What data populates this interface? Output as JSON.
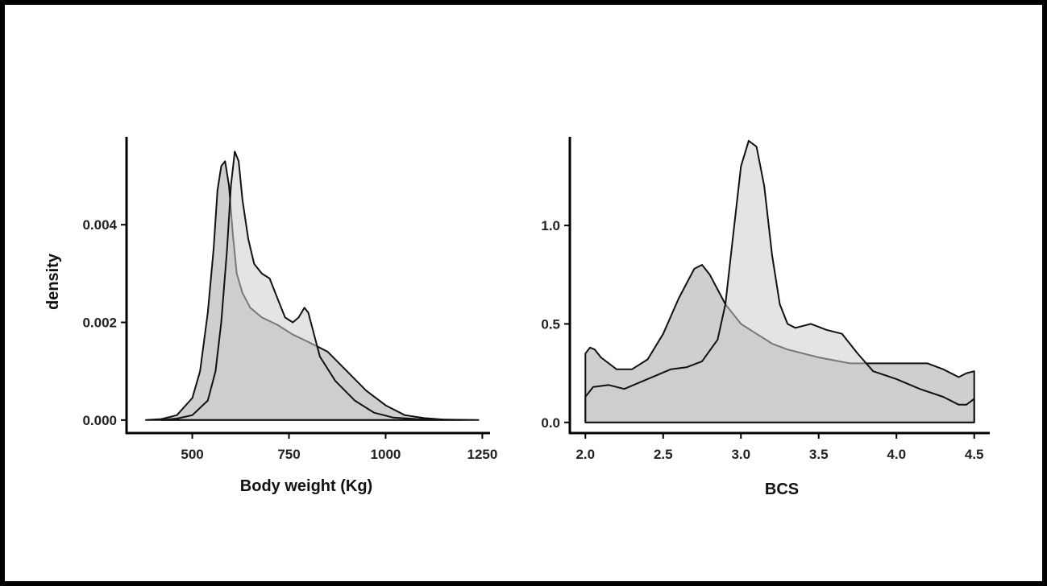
{
  "colors": {
    "frame": "#000000",
    "axis": "#000000",
    "fill_dark": "#a8a8a8",
    "fill_light": "#cdcdcd",
    "line": "#111111"
  },
  "chart_data": [
    {
      "type": "area",
      "title": "",
      "xlabel": "Body weight (Kg)",
      "ylabel": "density",
      "xlim": [
        330,
        1270
      ],
      "ylim": [
        -0.00025,
        0.0058
      ],
      "xticks": [
        500,
        750,
        1000,
        1250
      ],
      "xtick_labels": [
        "500",
        "750",
        "1000",
        "1250"
      ],
      "yticks": [
        0.0,
        0.002,
        0.004
      ],
      "ytick_labels": [
        "0.000",
        "0.002",
        "0.004"
      ],
      "grid": false,
      "legend": "none",
      "series": [
        {
          "x": [
            380,
            420,
            460,
            500,
            520,
            540,
            555,
            565,
            575,
            585,
            595,
            605,
            615,
            630,
            650,
            680,
            720,
            760,
            800,
            850,
            900,
            950,
            1000,
            1050,
            1100,
            1150,
            1200
          ],
          "y": [
            0.0,
            2e-05,
            0.0001,
            0.00045,
            0.001,
            0.0022,
            0.0035,
            0.0047,
            0.0052,
            0.0053,
            0.0048,
            0.0038,
            0.003,
            0.0026,
            0.0023,
            0.0021,
            0.00195,
            0.00175,
            0.0016,
            0.0014,
            0.001,
            0.0006,
            0.0003,
            0.0001,
            4e-05,
            1e-05,
            0.0
          ]
        },
        {
          "x": [
            420,
            460,
            500,
            540,
            560,
            575,
            590,
            600,
            610,
            620,
            630,
            645,
            660,
            680,
            700,
            720,
            740,
            760,
            775,
            790,
            800,
            810,
            830,
            870,
            920,
            970,
            1020,
            1080,
            1150,
            1240
          ],
          "y": [
            0.0,
            3e-05,
            0.0001,
            0.0004,
            0.001,
            0.002,
            0.0035,
            0.0048,
            0.0055,
            0.0053,
            0.0045,
            0.0037,
            0.0032,
            0.003,
            0.0029,
            0.0025,
            0.0021,
            0.002,
            0.0021,
            0.0023,
            0.0022,
            0.0019,
            0.0013,
            0.0008,
            0.0004,
            0.00015,
            5e-05,
            2e-05,
            1e-05,
            0.0
          ]
        }
      ]
    },
    {
      "type": "area",
      "title": "",
      "xlabel": "BCS",
      "ylabel": "",
      "xlim": [
        1.9,
        4.6
      ],
      "ylim": [
        -0.05,
        1.45
      ],
      "xticks": [
        2.0,
        2.5,
        3.0,
        3.5,
        4.0,
        4.5
      ],
      "xtick_labels": [
        "2.0",
        "2.5",
        "3.0",
        "3.5",
        "4.0",
        "4.5"
      ],
      "yticks": [
        0.0,
        0.5,
        1.0
      ],
      "ytick_labels": [
        "0.0",
        "0.5",
        "1.0"
      ],
      "grid": false,
      "legend": "none",
      "series": [
        {
          "x": [
            2.0,
            2.03,
            2.06,
            2.1,
            2.2,
            2.3,
            2.4,
            2.5,
            2.6,
            2.7,
            2.75,
            2.8,
            2.9,
            3.0,
            3.1,
            3.2,
            3.3,
            3.5,
            3.7,
            3.9,
            4.1,
            4.2,
            4.3,
            4.4,
            4.45,
            4.5
          ],
          "y": [
            0.35,
            0.38,
            0.37,
            0.33,
            0.27,
            0.27,
            0.32,
            0.45,
            0.63,
            0.78,
            0.8,
            0.75,
            0.6,
            0.5,
            0.45,
            0.4,
            0.37,
            0.33,
            0.3,
            0.3,
            0.3,
            0.3,
            0.27,
            0.23,
            0.25,
            0.26
          ]
        },
        {
          "x": [
            2.0,
            2.05,
            2.15,
            2.25,
            2.4,
            2.55,
            2.65,
            2.75,
            2.85,
            2.9,
            2.95,
            3.0,
            3.05,
            3.1,
            3.15,
            3.2,
            3.25,
            3.3,
            3.35,
            3.45,
            3.55,
            3.65,
            3.75,
            3.85,
            4.0,
            4.15,
            4.3,
            4.4,
            4.45,
            4.5
          ],
          "y": [
            0.13,
            0.18,
            0.19,
            0.17,
            0.22,
            0.27,
            0.28,
            0.31,
            0.42,
            0.6,
            0.95,
            1.3,
            1.43,
            1.4,
            1.2,
            0.85,
            0.6,
            0.5,
            0.48,
            0.5,
            0.47,
            0.45,
            0.35,
            0.26,
            0.22,
            0.17,
            0.13,
            0.09,
            0.09,
            0.12
          ]
        }
      ]
    }
  ]
}
